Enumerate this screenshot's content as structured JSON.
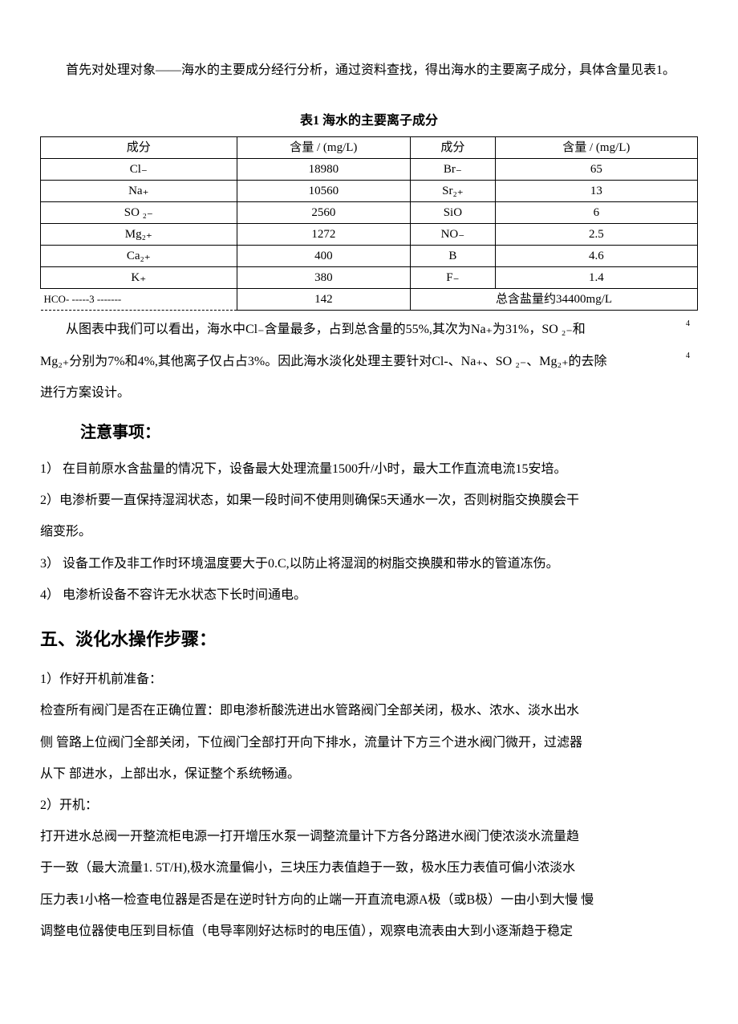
{
  "intro": {
    "p1": "首先对处理对象——海水的主要成分经行分析，通过资料查找，得出海水的主要离子成分，具体含量见表1。"
  },
  "table": {
    "title": "表1 海水的主要离子成分",
    "headers": [
      "成分",
      "含量 / (mg/L)",
      "成分",
      "含量 / (mg/L)"
    ],
    "rows": [
      [
        "Cl₋",
        "18980",
        "Br₋",
        "65"
      ],
      [
        "Na₊",
        "10560",
        "Sr₂₊",
        "13"
      ],
      [
        "SO ₂₋",
        "2560",
        "SiO",
        "6"
      ],
      [
        "Mg₂₊",
        "1272",
        "NO₋",
        "2.5"
      ],
      [
        "Ca₂₊",
        "400",
        "B",
        "4.6"
      ],
      [
        "K₊",
        "380",
        "F₋",
        "1.4"
      ]
    ],
    "last_row": {
      "c1": "HCO- -----3 -------",
      "c2": "142",
      "c34": "总含盐量约34400mg/L"
    }
  },
  "analysis": {
    "line1_a": "从图表中我们可以看出，海水中Cl₋含量最多，占到总含量的55%,其次为Na₊为31%，SO ₂₋和",
    "line1_sub": "4",
    "line2": "Mg₂₊分别为7%和4%,其他离子仅占占3%。因此海水淡化处理主要针对Cl-、Na₊、SO ₂₋、Mg₂₊的去除",
    "line2_sub": "4",
    "line3": "进行方案设计。"
  },
  "notes": {
    "heading": "注意事项：",
    "n1": "1） 在目前原水含盐量的情况下，设备最大处理流量1500升/小时，最大工作直流电流15安培。",
    "n2a": " 2）电渗析要一直保持湿润状态，如果一段时间不使用则确保5天通水一次，否则树脂交换膜会干",
    "n2b": "缩变形。",
    "n3": "3） 设备工作及非工作时环境温度要大于0.C,以防止将湿润的树脂交换膜和带水的管道冻伤。",
    "n4": "4） 电渗析设备不容许无水状态下长时间通电。"
  },
  "section5": {
    "heading": "五、淡化水操作步骤：",
    "s1_title": "  1）作好开机前准备：",
    "s1_p1": " 检查所有阀门是否在正确位置：即电渗析酸洗进出水管路阀门全部关闭，极水、浓水、淡水出水",
    "s1_p2": "侧 管路上位阀门全部关闭，下位阀门全部打开向下排水，流量计下方三个进水阀门微开，过滤器",
    "s1_p3": "从下 部进水，上部出水，保证整个系统畅通。",
    "s2_title": "2）开机：",
    "s2_p1": " 打开进水总阀一开整流柜电源一打开增压水泵一调整流量计下方各分路进水阀门使浓淡水流量趋",
    "s2_p2": "于一致（最大流量1. 5T/H),极水流量偏小，三块压力表值趋于一致，极水压力表值可偏小浓淡水",
    "s2_p3": "压力表1小格一检查电位器是否是在逆时针方向的止端一开直流电源A极（或B极）一由小到大慢 慢",
    "s2_p4": "调整电位器使电压到目标值（电导率刚好达标时的电压值），观察电流表由大到小逐渐趋于稳定"
  }
}
